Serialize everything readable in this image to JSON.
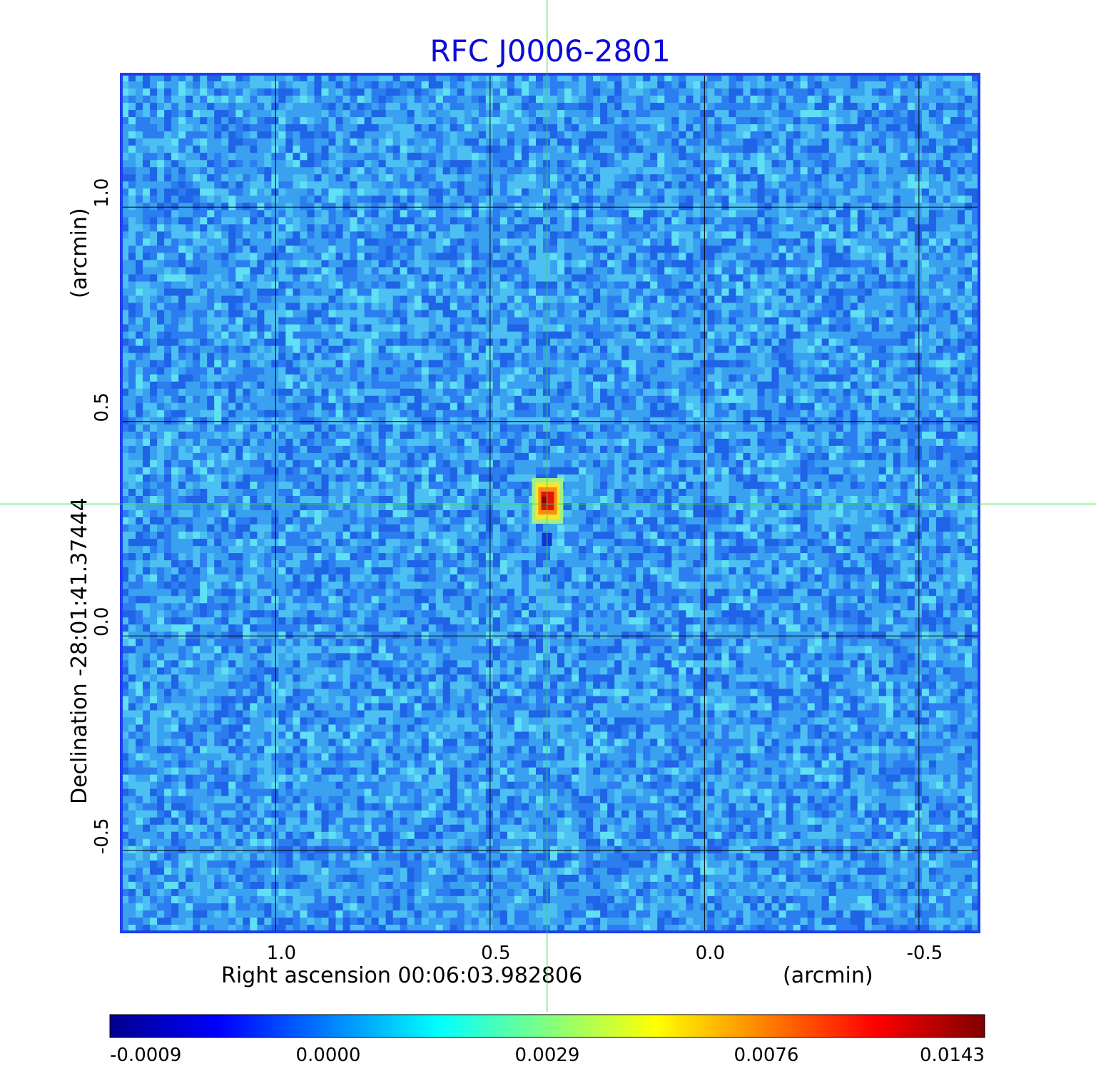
{
  "chart_data": {
    "type": "heatmap",
    "title": "RFC J0006-2801",
    "xlabel": "Right ascension  00:06:03.982806",
    "xunit": "(arcmin)",
    "ylabel": "Declination  -28:01:41.37444",
    "yunit": "(arcmin)",
    "x_range": [
      1.36,
      -0.64
    ],
    "y_range": [
      -0.69,
      1.31
    ],
    "x_ticks": [
      1.0,
      0.5,
      0.0,
      -0.5
    ],
    "x_tick_labels": [
      "1.0",
      "0.5",
      "0.0",
      "-0.5"
    ],
    "y_ticks": [
      1.0,
      0.5,
      0.0,
      -0.5
    ],
    "y_tick_labels": [
      "1.0",
      "0.5",
      "0.0",
      "-0.5"
    ],
    "grid": true,
    "crosshair": {
      "x": 0.367,
      "y": 0.308
    },
    "source_peak": {
      "x": 0.366,
      "y": 0.315,
      "value": 0.0143
    },
    "colorbar": {
      "ticks": [
        -0.0009,
        0.0,
        0.0029,
        0.0076,
        0.0143
      ],
      "labels": [
        "-0.0009",
        "0.0000",
        "0.0029",
        "0.0076",
        "0.0143"
      ],
      "colormap": "jet"
    },
    "colors": {
      "title": "#0b0bd8",
      "frame": "#1f3ff0",
      "crosshair": "#33dd33",
      "background_noise": "#3aa0f0"
    }
  }
}
